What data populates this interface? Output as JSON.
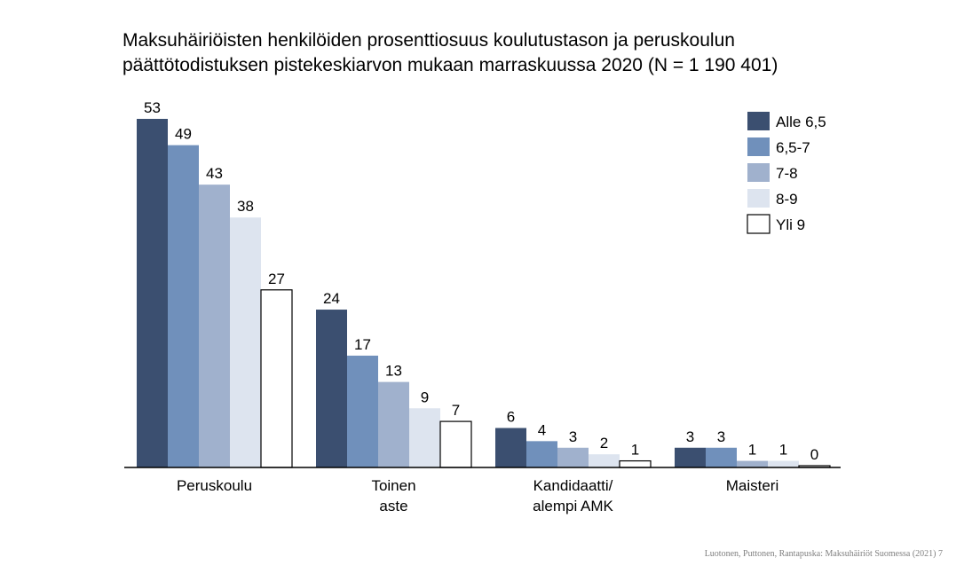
{
  "chart_data": {
    "type": "bar",
    "title_lines": [
      "Maksuhäiriöisten henkilöiden prosenttiosuus koulutustason ja peruskoulun",
      "päättötodistuksen pistekeskiarvon mukaan marraskuussa 2020 (N = 1 190 401)"
    ],
    "categories": [
      [
        "Peruskoulu"
      ],
      [
        "Toinen",
        "aste"
      ],
      [
        "Kandidaatti/",
        "alempi AMK"
      ],
      [
        "Maisteri"
      ]
    ],
    "series": [
      {
        "name": "Alle 6,5",
        "color": "#3b4f70",
        "values": [
          53,
          24,
          6,
          3
        ]
      },
      {
        "name": "6,5-7",
        "color": "#7090bb",
        "values": [
          49,
          17,
          4,
          3
        ]
      },
      {
        "name": "7-8",
        "color": "#a0b1cd",
        "values": [
          43,
          13,
          3,
          1
        ]
      },
      {
        "name": "8-9",
        "color": "#dde4ef",
        "values": [
          38,
          9,
          2,
          1
        ]
      },
      {
        "name": "Yli 9",
        "color": "#ffffff",
        "values": [
          27,
          7,
          1,
          0
        ]
      }
    ],
    "ylim": [
      0,
      53
    ],
    "grid": false,
    "legend": "top-right",
    "source": "Luotonen, Puttonen, Rantapuska: Maksuhäiriöt Suomessa (2021) 7"
  }
}
